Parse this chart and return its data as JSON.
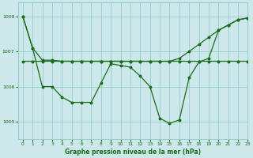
{
  "title": "Graphe pression niveau de la mer (hPa)",
  "background_color": "#cce8ea",
  "grid_color": "#99cccc",
  "line_color": "#1a6b1a",
  "marker_color": "#1a6b1a",
  "xlim": [
    -0.5,
    23
  ],
  "ylim": [
    1004.5,
    1008.4
  ],
  "yticks": [
    1005,
    1006,
    1007,
    1008
  ],
  "xticks": [
    0,
    1,
    2,
    3,
    4,
    5,
    6,
    7,
    8,
    9,
    10,
    11,
    12,
    13,
    14,
    15,
    16,
    17,
    18,
    19,
    20,
    21,
    22,
    23
  ],
  "series_flat": {
    "x": [
      0,
      1,
      2,
      3,
      4,
      5,
      6,
      7,
      8,
      9,
      10,
      11,
      12,
      13,
      14,
      15,
      16,
      17,
      18,
      19,
      20,
      21,
      22,
      23
    ],
    "y": [
      1008.0,
      1007.1,
      1006.75,
      1006.75,
      1006.72,
      1006.72,
      1006.72,
      1006.72,
      1006.72,
      1006.72,
      1006.72,
      1006.72,
      1006.72,
      1006.72,
      1006.72,
      1006.72,
      1006.72,
      1006.72,
      1006.72,
      1006.72,
      1006.72,
      1006.72,
      1006.72,
      1006.72
    ]
  },
  "series_rising": {
    "x": [
      0,
      1,
      2,
      3,
      4,
      5,
      6,
      7,
      8,
      9,
      10,
      11,
      12,
      13,
      14,
      15,
      16,
      17,
      18,
      19,
      20,
      21,
      22,
      23
    ],
    "y": [
      1006.72,
      1006.72,
      1006.72,
      1006.72,
      1006.72,
      1006.72,
      1006.72,
      1006.72,
      1006.72,
      1006.72,
      1006.72,
      1006.72,
      1006.72,
      1006.72,
      1006.72,
      1006.72,
      1006.8,
      1007.0,
      1007.2,
      1007.4,
      1007.6,
      1007.75,
      1007.9,
      1007.95
    ]
  },
  "series_dip": {
    "x": [
      0,
      1,
      2,
      3,
      4,
      5,
      6,
      7,
      8,
      9,
      10,
      11,
      12,
      13,
      14,
      15,
      16,
      17,
      18,
      19,
      20,
      21,
      22,
      23
    ],
    "y": [
      1008.0,
      1007.1,
      1006.0,
      1006.0,
      1005.7,
      1005.55,
      1005.55,
      1005.55,
      1006.1,
      1006.65,
      1006.6,
      1006.55,
      1006.3,
      1006.0,
      1005.1,
      1004.95,
      1005.05,
      1006.25,
      1006.7,
      1006.8,
      1007.6,
      1007.75,
      1007.9,
      1007.95
    ]
  }
}
